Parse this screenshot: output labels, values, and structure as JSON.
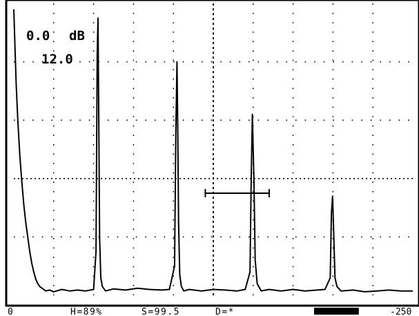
{
  "screen": {
    "gain_db": "0.0",
    "gain_unit": "dB",
    "gain_step": "12.0"
  },
  "status_bar": {
    "start": "0",
    "h_readout": "H=89%",
    "s_readout": "S=99.5",
    "d_readout": "D=*",
    "end": "-250"
  },
  "colors": {
    "background": "#ffffff",
    "trace": "#000000",
    "grid": "#000000"
  },
  "icons": {
    "gate": "gate-marker-icon",
    "battery": "battery-indicator-icon"
  },
  "chart_data": {
    "type": "line",
    "title": "",
    "xlabel": "",
    "ylabel": "",
    "xlim": [
      0,
      100
    ],
    "ylim": [
      0,
      100
    ],
    "grid": true,
    "series": [
      {
        "name": "",
        "x": [
          0,
          0.3,
          0.6,
          1,
          1.5,
          2,
          2.5,
          3,
          3.5,
          4,
          4.5,
          5,
          5.5,
          6,
          6.5,
          7,
          7.5,
          8,
          9,
          10,
          12,
          14,
          16,
          18,
          20,
          20.6,
          20.9,
          21.1,
          21.3,
          21.5,
          21.8,
          22.2,
          23,
          25,
          28,
          31,
          34,
          37,
          39,
          40.3,
          40.6,
          40.9,
          41.1,
          41.3,
          41.6,
          42,
          42.6,
          44,
          47,
          50,
          53,
          56,
          58,
          59.2,
          59.5,
          59.8,
          60.2,
          60.5,
          61,
          62,
          64,
          67,
          70,
          73,
          76,
          78,
          79.3,
          79.6,
          79.9,
          80.2,
          80.5,
          81,
          82,
          85,
          88,
          91,
          94,
          97,
          100
        ],
        "y": [
          98,
          85,
          72,
          60,
          48,
          39,
          31,
          25,
          20,
          15,
          11,
          8,
          5.5,
          4,
          3,
          2.5,
          2,
          1.5,
          1.8,
          1.2,
          2,
          1.5,
          1.8,
          1.5,
          2,
          15,
          82,
          95,
          60,
          20,
          6,
          3,
          1.5,
          2.2,
          1.8,
          2.4,
          2,
          1.8,
          2,
          10,
          55,
          80,
          55,
          25,
          7,
          3,
          1.5,
          2,
          1.5,
          2,
          1.8,
          1.5,
          2,
          8,
          40,
          62,
          38,
          12,
          4,
          1.5,
          2,
          1.5,
          2,
          1.5,
          1.8,
          2,
          6,
          28,
          34,
          20,
          6,
          3,
          1.5,
          1.8,
          1.2,
          1.5,
          1.8,
          1.5,
          1.5
        ]
      }
    ],
    "gate": {
      "x_start": 48,
      "x_end": 64,
      "level": 35
    },
    "battery_level": 0.9
  }
}
